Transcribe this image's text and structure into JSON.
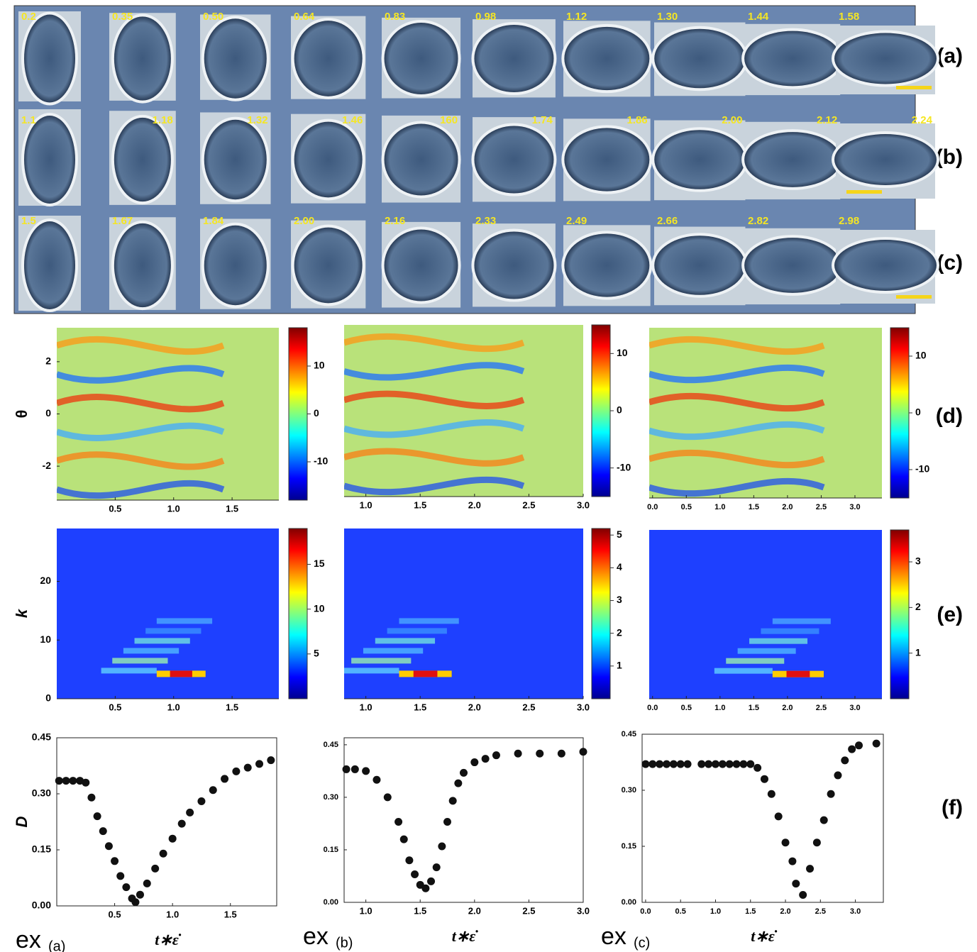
{
  "micrographs": {
    "rows": [
      {
        "label": "(a)",
        "times": [
          "0.2",
          "0.35",
          "0.50",
          "0.64",
          "0.83",
          "0.98",
          "1.12",
          "1.30",
          "1.44",
          "1.58"
        ]
      },
      {
        "label": "(b)",
        "times": [
          "1.1",
          "1.18",
          "1.32",
          "1.46",
          "160",
          "1.74",
          "1.86",
          "2.00",
          "2.12",
          "2.24"
        ]
      },
      {
        "label": "(c)",
        "times": [
          "1.5",
          "1.67",
          "1.84",
          "2.00",
          "2.16",
          "2.33",
          "2.49",
          "2.66",
          "2.82",
          "2.98"
        ]
      }
    ]
  },
  "panel_labels": {
    "d": "(d)",
    "e": "(e)",
    "f": "(f)"
  },
  "chart_data": [
    {
      "type": "heatmap",
      "ylabel": "θ",
      "xlim": [
        0,
        1.9
      ],
      "ylim": [
        -3.3,
        3.3
      ],
      "xticks": [
        0.5,
        {
          "value": 1,
          "label": "1.0"
        },
        1.5
      ],
      "yticks": [
        2,
        0,
        -2
      ],
      "colorbar": {
        "lim": [
          -18,
          18
        ],
        "ticks": [
          10,
          0,
          -10
        ]
      }
    },
    {
      "type": "heatmap",
      "xlim": [
        0.8,
        3.0
      ],
      "ylim": [
        -3.3,
        3.3
      ],
      "xticks": [
        {
          "value": 1,
          "label": "1.0"
        },
        1.5,
        {
          "value": 2,
          "label": "2.0"
        },
        2.5,
        {
          "value": 3,
          "label": "3.0"
        }
      ],
      "colorbar": {
        "lim": [
          -15,
          15
        ],
        "ticks": [
          10,
          0,
          -10
        ]
      }
    },
    {
      "type": "heatmap",
      "xlim": [
        -0.05,
        3.4
      ],
      "ylim": [
        -3.3,
        3.3
      ],
      "xticks": [
        {
          "value": 0,
          "label": "0.0"
        },
        0.5,
        {
          "value": 1,
          "label": "1.0"
        },
        1.5,
        {
          "value": 2,
          "label": "2.0"
        },
        2.5,
        {
          "value": 3,
          "label": "3.0"
        }
      ],
      "colorbar": {
        "lim": [
          -15,
          15
        ],
        "ticks": [
          10,
          0,
          -10
        ]
      }
    },
    {
      "type": "heatmap",
      "ylabel": "k",
      "xlim": [
        0,
        1.9
      ],
      "ylim": [
        0,
        29
      ],
      "xticks": [
        0.5,
        {
          "value": 1,
          "label": "1.0"
        },
        1.5
      ],
      "yticks": [
        0,
        10,
        20
      ],
      "colorbar": {
        "lim": [
          0,
          19
        ],
        "ticks": [
          5,
          10,
          15
        ]
      }
    },
    {
      "type": "heatmap",
      "xlim": [
        0.8,
        3.0
      ],
      "ylim": [
        0,
        29
      ],
      "xticks": [
        {
          "value": 1,
          "label": "1.0"
        },
        1.5,
        {
          "value": 2,
          "label": "2.0"
        },
        2.5,
        {
          "value": 3,
          "label": "3.0"
        }
      ],
      "colorbar": {
        "lim": [
          0,
          5.2
        ],
        "ticks": [
          1,
          2,
          3,
          4,
          5
        ]
      }
    },
    {
      "type": "heatmap",
      "xlim": [
        -0.05,
        3.4
      ],
      "ylim": [
        0,
        29
      ],
      "xticks": [
        {
          "value": 0,
          "label": "0.0"
        },
        0.5,
        {
          "value": 1,
          "label": "1.0"
        },
        1.5,
        {
          "value": 2,
          "label": "2.0"
        },
        2.5,
        {
          "value": 3,
          "label": "3.0"
        }
      ],
      "colorbar": {
        "lim": [
          0,
          3.7
        ],
        "ticks": [
          1,
          2,
          3
        ]
      }
    },
    {
      "type": "scatter",
      "ylabel": "D",
      "xlabel": "t∗ε̇",
      "caption": "ex",
      "caption_sub": "(a)",
      "color": "#111111",
      "xlim": [
        0,
        1.9
      ],
      "ylim": [
        0,
        0.45
      ],
      "xticks": [
        0.5,
        {
          "value": 1,
          "label": "1.0"
        },
        1.5
      ],
      "yticks": [
        {
          "value": 0,
          "label": "0.00"
        },
        0.15,
        {
          "value": 0.3,
          "label": "0.30"
        },
        0.45
      ],
      "x": [
        0.02,
        0.08,
        0.14,
        0.2,
        0.25,
        0.3,
        0.35,
        0.4,
        0.45,
        0.5,
        0.55,
        0.6,
        0.65,
        0.68,
        0.72,
        0.78,
        0.85,
        0.92,
        1.0,
        1.08,
        1.15,
        1.25,
        1.35,
        1.45,
        1.55,
        1.65,
        1.75,
        1.85
      ],
      "y": [
        0.335,
        0.335,
        0.335,
        0.335,
        0.33,
        0.29,
        0.24,
        0.2,
        0.16,
        0.12,
        0.08,
        0.05,
        0.02,
        0.01,
        0.03,
        0.06,
        0.1,
        0.14,
        0.18,
        0.22,
        0.25,
        0.28,
        0.31,
        0.34,
        0.36,
        0.37,
        0.38,
        0.39
      ]
    },
    {
      "type": "scatter",
      "xlabel": "t∗ε̇",
      "caption": "ex",
      "caption_sub": "(b)",
      "color": "#111111",
      "xlim": [
        0.8,
        3.0
      ],
      "ylim": [
        0,
        0.47
      ],
      "xticks": [
        {
          "value": 1,
          "label": "1.0"
        },
        1.5,
        {
          "value": 2,
          "label": "2.0"
        },
        2.5,
        {
          "value": 3,
          "label": "3.0"
        }
      ],
      "yticks": [
        {
          "value": 0,
          "label": "0.00"
        },
        0.15,
        {
          "value": 0.3,
          "label": "0.30"
        },
        0.45
      ],
      "x": [
        0.82,
        0.9,
        1.0,
        1.1,
        1.2,
        1.3,
        1.35,
        1.4,
        1.45,
        1.5,
        1.55,
        1.6,
        1.65,
        1.7,
        1.75,
        1.8,
        1.85,
        1.9,
        2.0,
        2.1,
        2.2,
        2.4,
        2.6,
        2.8,
        3.0
      ],
      "y": [
        0.38,
        0.38,
        0.375,
        0.35,
        0.3,
        0.23,
        0.18,
        0.12,
        0.08,
        0.05,
        0.04,
        0.06,
        0.1,
        0.16,
        0.23,
        0.29,
        0.34,
        0.37,
        0.4,
        0.41,
        0.42,
        0.425,
        0.425,
        0.425,
        0.43
      ]
    },
    {
      "type": "scatter",
      "xlabel": "t∗ε̇",
      "caption": "ex",
      "caption_sub": "(c)",
      "color": "#111111",
      "xlim": [
        -0.05,
        3.4
      ],
      "ylim": [
        0,
        0.45
      ],
      "xticks": [
        {
          "value": 0,
          "label": "0.0"
        },
        0.5,
        {
          "value": 1,
          "label": "1.0"
        },
        1.5,
        {
          "value": 2,
          "label": "2.0"
        },
        2.5,
        {
          "value": 3,
          "label": "3.0"
        }
      ],
      "yticks": [
        {
          "value": 0,
          "label": "0.00"
        },
        0.15,
        {
          "value": 0.3,
          "label": "0.30"
        },
        0.45
      ],
      "x": [
        0,
        0.1,
        0.2,
        0.3,
        0.4,
        0.5,
        0.6,
        0.8,
        0.9,
        1.0,
        1.1,
        1.2,
        1.3,
        1.4,
        1.5,
        1.6,
        1.7,
        1.8,
        1.9,
        2.0,
        2.1,
        2.15,
        2.25,
        2.35,
        2.45,
        2.55,
        2.65,
        2.75,
        2.85,
        2.95,
        3.05,
        3.3
      ],
      "y": [
        0.37,
        0.37,
        0.37,
        0.37,
        0.37,
        0.37,
        0.37,
        0.37,
        0.37,
        0.37,
        0.37,
        0.37,
        0.37,
        0.37,
        0.37,
        0.36,
        0.33,
        0.29,
        0.23,
        0.16,
        0.11,
        0.05,
        0.02,
        0.09,
        0.16,
        0.22,
        0.29,
        0.34,
        0.38,
        0.41,
        0.42,
        0.425
      ]
    }
  ]
}
